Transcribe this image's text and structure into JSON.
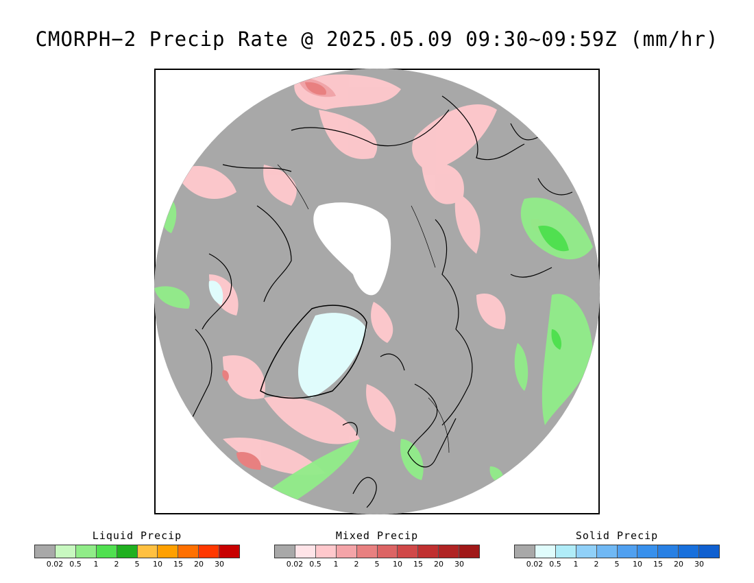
{
  "title": "CMORPH−2 Precip Rate @ 2025.05.09 09:30~09:59Z (mm/hr)",
  "map": {
    "projection": "north-polar-stereographic",
    "background_color": "#a8a8a8",
    "ice_sheet_color": "#ffffff",
    "coastline_color": "#000000"
  },
  "legends": [
    {
      "id": "liquid",
      "title": "Liquid Precip",
      "colors": [
        "#a8a8a8",
        "#c8f8c0",
        "#90ec88",
        "#50e050",
        "#20b020",
        "#ffc040",
        "#ffa000",
        "#ff7000",
        "#ff3800",
        "#c80000"
      ],
      "ticks": [
        "0.02",
        "0.5",
        "1",
        "2",
        "5",
        "10",
        "15",
        "20",
        "30"
      ]
    },
    {
      "id": "mixed",
      "title": "Mixed Precip",
      "colors": [
        "#a8a8a8",
        "#ffe4e8",
        "#ffc8cc",
        "#f4a4a8",
        "#e88080",
        "#dc6464",
        "#d04848",
        "#c03030",
        "#b02424",
        "#a01818"
      ],
      "ticks": [
        "0.02",
        "0.5",
        "1",
        "2",
        "5",
        "10",
        "15",
        "20",
        "30"
      ]
    },
    {
      "id": "solid",
      "title": "Solid Precip",
      "colors": [
        "#a8a8a8",
        "#e0fcfc",
        "#b0ecf8",
        "#90d0f8",
        "#70b8f4",
        "#50a0f0",
        "#3890ec",
        "#2880e4",
        "#1870dc",
        "#1060d0"
      ],
      "ticks": [
        "0.02",
        "0.5",
        "1",
        "2",
        "5",
        "10",
        "15",
        "20",
        "30"
      ]
    }
  ]
}
